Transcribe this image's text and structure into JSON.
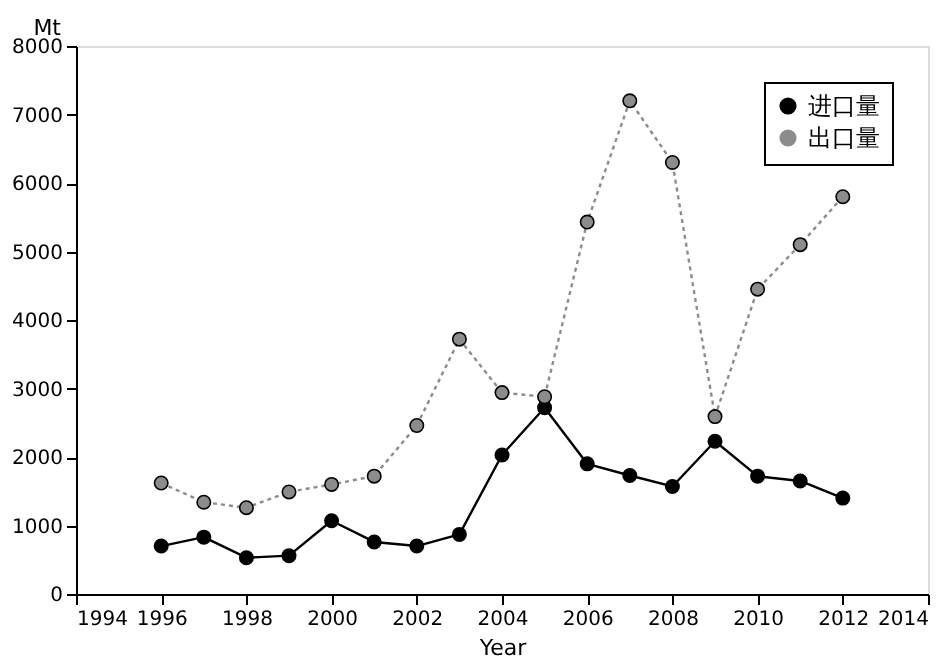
{
  "chart_data": {
    "type": "line",
    "xlabel": "Year",
    "ylabel": "Mt",
    "x": [
      1996,
      1997,
      1998,
      1999,
      2000,
      2001,
      2002,
      2003,
      2004,
      2005,
      2006,
      2007,
      2008,
      2009,
      2010,
      2011,
      2012
    ],
    "series": [
      {
        "name": "进口量",
        "color": "#000000",
        "line_style": "solid",
        "values": [
          700,
          830,
          530,
          560,
          1070,
          760,
          700,
          870,
          2030,
          2720,
          1900,
          1730,
          1570,
          2230,
          1720,
          1650,
          1400
        ]
      },
      {
        "name": "出口量",
        "color": "#8c8c8c",
        "line_style": "dotted",
        "values": [
          1620,
          1340,
          1260,
          1490,
          1600,
          1720,
          2460,
          3720,
          2940,
          2880,
          5430,
          7200,
          6300,
          2590,
          4450,
          5100,
          5800
        ]
      }
    ],
    "xlim": [
      1994,
      2014
    ],
    "xticks": [
      1994,
      1996,
      1998,
      2000,
      2002,
      2004,
      2006,
      2008,
      2010,
      2012,
      2014
    ],
    "ylim": [
      0,
      8000
    ],
    "yticks": [
      0,
      1000,
      2000,
      3000,
      4000,
      5000,
      6000,
      7000,
      8000
    ],
    "legend": "top right",
    "grid": false,
    "marker": "circle"
  }
}
